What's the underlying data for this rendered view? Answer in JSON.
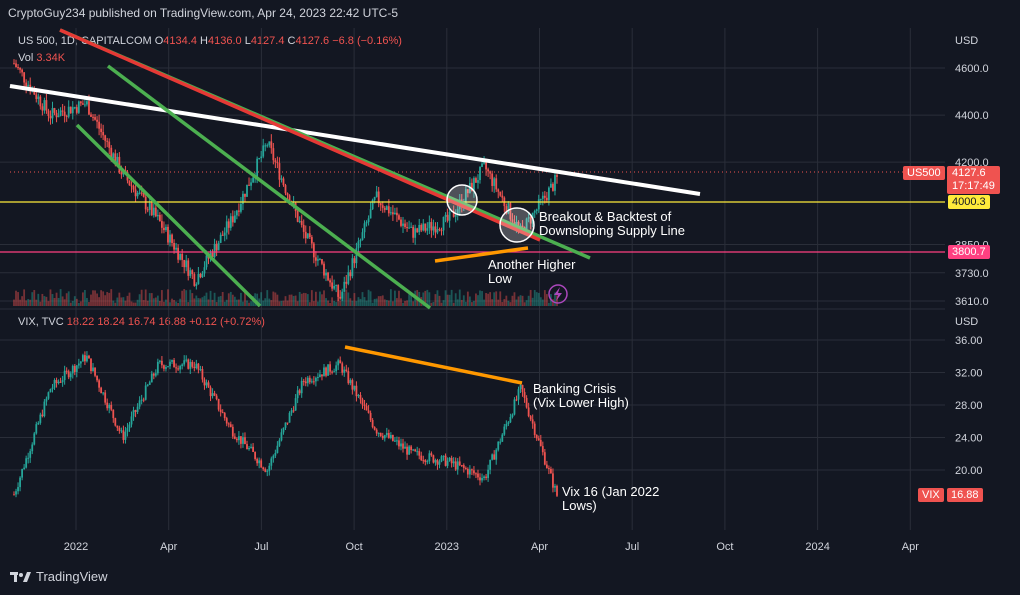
{
  "header": {
    "published_line": "CryptoGuy234 published on TradingView.com, Apr 24, 2023 22:42 UTC-5"
  },
  "main_pane": {
    "symbol": "US 500, 1D, CAPITALCOM",
    "ohlc": {
      "o_label": "O",
      "o": "4134.4",
      "h_label": "H",
      "h": "4136.0",
      "l_label": "L",
      "l": "4127.4",
      "c_label": "C",
      "c": "4127.6",
      "change": "−6.8 (−0.16%)"
    },
    "volume_label": "Vol",
    "volume_value": "3.34K",
    "currency": "USD",
    "price_ticks": [
      "4600.0",
      "4400.0",
      "4200.0",
      "3850.0",
      "3730.0",
      "3610.0"
    ],
    "tags": {
      "symbol_tag": "US500",
      "last_price": "4127.6",
      "countdown": "17:17:49",
      "level_yellow": "4000.3",
      "level_pink": "3800.7"
    },
    "annotations": {
      "breakout": "Breakout & Backtest of\nDownsloping Supply Line",
      "higher_low": "Another Higher\nLow"
    }
  },
  "vix_pane": {
    "symbol": "VIX, TVC",
    "ohlc": {
      "o": "18.22",
      "h": "18.24",
      "l": "16.74",
      "c": "16.88",
      "change": "+0.12 (+0.72%)"
    },
    "currency": "USD",
    "ticks": [
      "36.00",
      "32.00",
      "28.00",
      "24.00",
      "20.00"
    ],
    "tags": {
      "symbol_tag": "VIX",
      "last_value": "16.88"
    },
    "annotations": {
      "banking": "Banking Crisis\n(Vix Lower High)",
      "vix16": "Vix 16 (Jan 2022\nLows)"
    }
  },
  "time_axis": [
    "2022",
    "Apr",
    "Jul",
    "Oct",
    "2023",
    "Apr",
    "Jul",
    "Oct",
    "2024",
    "Apr"
  ],
  "footer": {
    "brand": "TradingView"
  },
  "colors": {
    "background": "#131722",
    "up": "#26a69a",
    "down": "#ef5350",
    "trend_white": "#ffffff",
    "trend_green": "#4caf50",
    "trend_red": "#e53935",
    "trend_orange": "#ff9800",
    "level_yellow": "#ffeb3b",
    "level_pink": "#ff4081"
  },
  "chart_data": [
    {
      "type": "line",
      "title": "US 500, 1D, CAPITALCOM",
      "ylabel": "USD",
      "ylim": [
        3610,
        4650
      ],
      "x": [
        "2022-01",
        "2022-02",
        "2022-03",
        "2022-04",
        "2022-05",
        "2022-06",
        "2022-07",
        "2022-08",
        "2022-09",
        "2022-10",
        "2022-11",
        "2022-12",
        "2023-01",
        "2023-02",
        "2023-03",
        "2023-04"
      ],
      "series": [
        {
          "name": "US 500",
          "values": [
            4620,
            4400,
            4450,
            4150,
            3950,
            3700,
            3950,
            4280,
            3900,
            3620,
            4050,
            3900,
            3950,
            4180,
            3900,
            4127.6
          ]
        }
      ],
      "horizontal_levels": [
        4000.3,
        3800.7
      ]
    },
    {
      "type": "line",
      "title": "VIX, TVC",
      "ylabel": "USD",
      "ylim": [
        16,
        38
      ],
      "x": [
        "2022-01",
        "2022-02",
        "2022-03",
        "2022-04",
        "2022-05",
        "2022-06",
        "2022-07",
        "2022-08",
        "2022-09",
        "2022-10",
        "2022-11",
        "2022-12",
        "2023-01",
        "2023-02",
        "2023-03",
        "2023-04"
      ],
      "series": [
        {
          "name": "VIX",
          "values": [
            17,
            30,
            34,
            24,
            33,
            33,
            25,
            20,
            31,
            33,
            25,
            22,
            21,
            19,
            30,
            16.88
          ]
        }
      ]
    }
  ]
}
